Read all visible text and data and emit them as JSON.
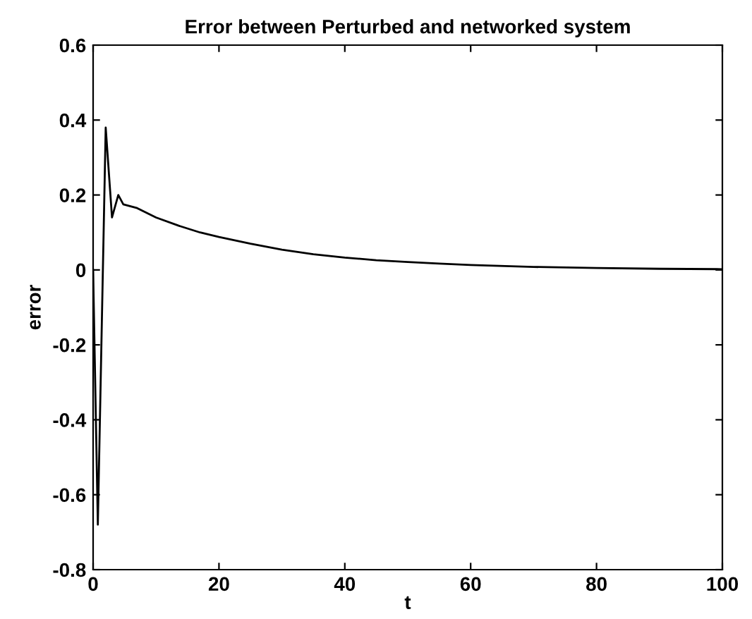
{
  "chart_data": {
    "type": "line",
    "title": "Error between Perturbed and networked system",
    "xlabel": "t",
    "ylabel": "error",
    "x": [
      0,
      0.75,
      2,
      3,
      4,
      4.8,
      7,
      10,
      13.6,
      17,
      20,
      25,
      30,
      35,
      40,
      45,
      50,
      55,
      60,
      70,
      80,
      90,
      100
    ],
    "series": [
      {
        "color": "#000000",
        "values": [
          0,
          -0.68,
          0.38,
          0.14,
          0.2,
          0.175,
          0.165,
          0.14,
          0.118,
          0.1,
          0.088,
          0.07,
          0.054,
          0.042,
          0.033,
          0.026,
          0.021,
          0.017,
          0.013,
          0.008,
          0.005,
          0.003,
          0.002
        ]
      }
    ],
    "xlim": [
      0,
      100
    ],
    "ylim": [
      -0.8,
      0.6
    ],
    "xticks": [
      0,
      20,
      40,
      60,
      80,
      100
    ],
    "yticks": [
      -0.8,
      -0.6,
      -0.4,
      -0.2,
      0,
      0.2,
      0.4,
      0.6
    ],
    "grid": false,
    "legend": false,
    "marker": "none",
    "line_style": "solid"
  }
}
